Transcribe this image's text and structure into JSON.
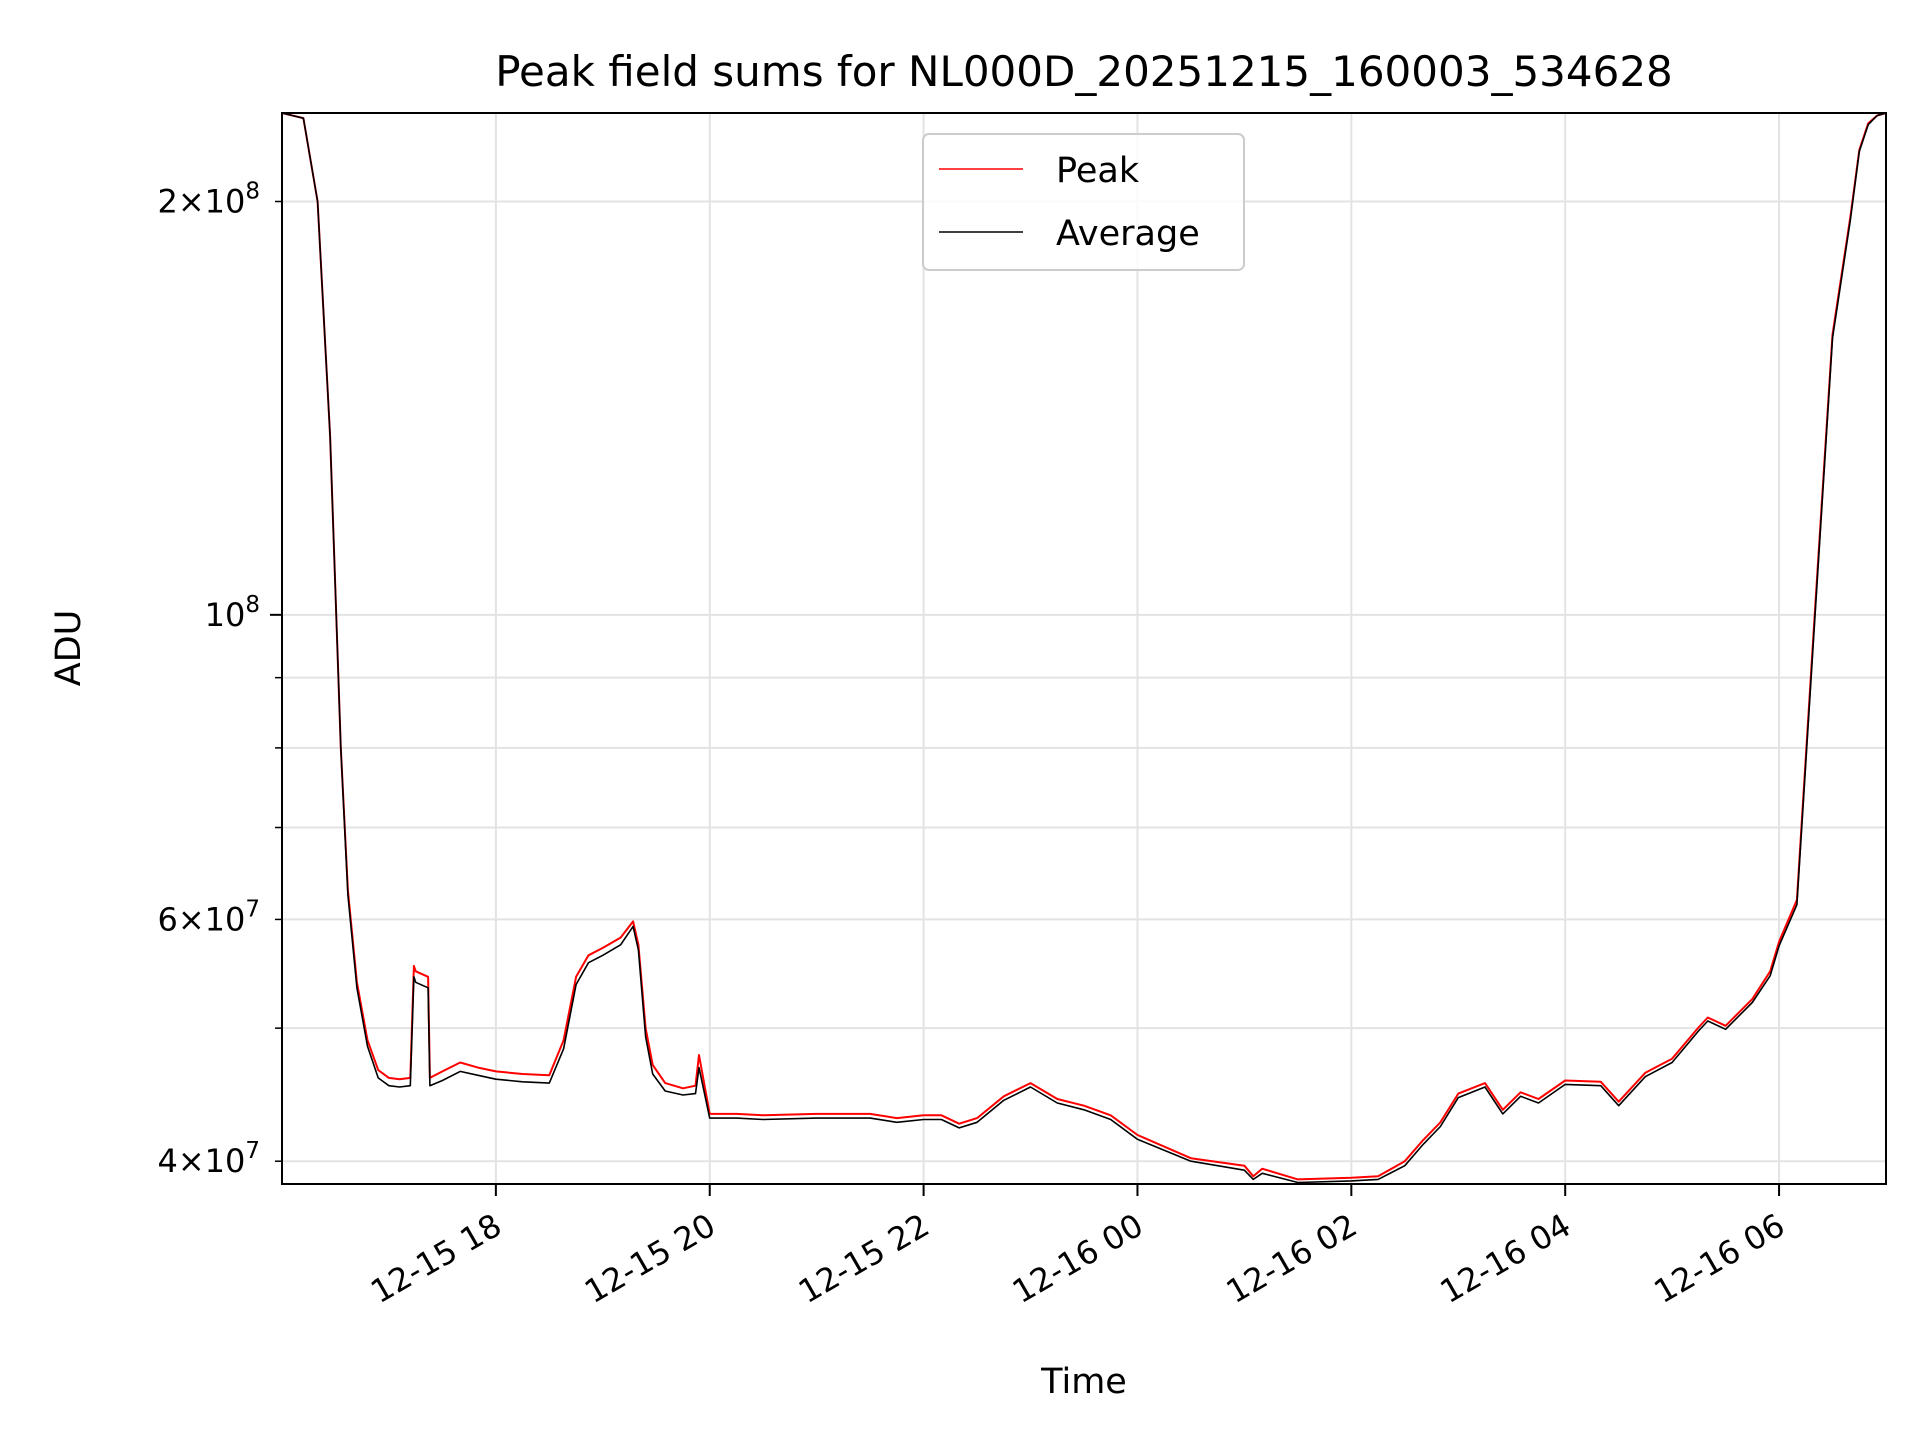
{
  "chart_data": {
    "type": "line",
    "title": "Peak field sums for NL000D_20251215_160003_534628",
    "xlabel": "Time",
    "ylabel": "ADU",
    "y_scale": "log",
    "grid": true,
    "legend_position": "upper center",
    "xlim": [
      "2025-12-15 16:00",
      "2025-12-16 07:00"
    ],
    "ylim": [
      38500000,
      232000000
    ],
    "x_ticks": [
      {
        "value": "2025-12-15 18:00",
        "label": "12-15 18"
      },
      {
        "value": "2025-12-15 20:00",
        "label": "12-15 20"
      },
      {
        "value": "2025-12-15 22:00",
        "label": "12-15 22"
      },
      {
        "value": "2025-12-16 00:00",
        "label": "12-16 00"
      },
      {
        "value": "2025-12-16 02:00",
        "label": "12-16 02"
      },
      {
        "value": "2025-12-16 04:00",
        "label": "12-16 04"
      },
      {
        "value": "2025-12-16 06:00",
        "label": "12-16 06"
      }
    ],
    "y_major_ticks": [
      {
        "value": 100000000,
        "base": "10",
        "exp": "8"
      }
    ],
    "y_minor_ticks": [
      {
        "value": 40000000,
        "mant": "4",
        "base": "10",
        "exp": "7"
      },
      {
        "value": 60000000,
        "mant": "6",
        "base": "10",
        "exp": "7"
      },
      {
        "value": 200000000,
        "mant": "2",
        "base": "10",
        "exp": "8"
      },
      {
        "value": 50000000
      },
      {
        "value": 70000000
      },
      {
        "value": 80000000
      },
      {
        "value": 90000000
      }
    ],
    "series": [
      {
        "name": "Peak",
        "color": "#ff0000",
        "x": [
          "2025-12-15 16:00",
          "2025-12-15 16:12",
          "2025-12-15 16:20",
          "2025-12-15 16:27",
          "2025-12-15 16:33",
          "2025-12-15 16:37",
          "2025-12-15 16:42",
          "2025-12-15 16:48",
          "2025-12-15 16:54",
          "2025-12-15 17:00",
          "2025-12-15 17:06",
          "2025-12-15 17:12",
          "2025-12-15 17:14",
          "2025-12-15 17:15",
          "2025-12-15 17:22",
          "2025-12-15 17:23",
          "2025-12-15 17:30",
          "2025-12-15 17:40",
          "2025-12-15 17:50",
          "2025-12-15 18:00",
          "2025-12-15 18:15",
          "2025-12-15 18:30",
          "2025-12-15 18:38",
          "2025-12-15 18:45",
          "2025-12-15 18:52",
          "2025-12-15 19:00",
          "2025-12-15 19:10",
          "2025-12-15 19:17",
          "2025-12-15 19:20",
          "2025-12-15 19:24",
          "2025-12-15 19:28",
          "2025-12-15 19:35",
          "2025-12-15 19:45",
          "2025-12-15 19:52",
          "2025-12-15 19:54",
          "2025-12-15 20:00",
          "2025-12-15 20:15",
          "2025-12-15 20:30",
          "2025-12-15 21:00",
          "2025-12-15 21:30",
          "2025-12-15 21:45",
          "2025-12-15 22:00",
          "2025-12-15 22:10",
          "2025-12-15 22:20",
          "2025-12-15 22:30",
          "2025-12-15 22:45",
          "2025-12-15 23:00",
          "2025-12-15 23:15",
          "2025-12-15 23:30",
          "2025-12-15 23:45",
          "2025-12-16 00:00",
          "2025-12-16 00:30",
          "2025-12-16 01:00",
          "2025-12-16 01:05",
          "2025-12-16 01:10",
          "2025-12-16 01:30",
          "2025-12-16 02:00",
          "2025-12-16 02:15",
          "2025-12-16 02:30",
          "2025-12-16 02:40",
          "2025-12-16 02:50",
          "2025-12-16 03:00",
          "2025-12-16 03:15",
          "2025-12-16 03:25",
          "2025-12-16 03:35",
          "2025-12-16 03:45",
          "2025-12-16 04:00",
          "2025-12-16 04:20",
          "2025-12-16 04:30",
          "2025-12-16 04:45",
          "2025-12-16 05:00",
          "2025-12-16 05:15",
          "2025-12-16 05:20",
          "2025-12-16 05:30",
          "2025-12-16 05:45",
          "2025-12-16 05:55",
          "2025-12-16 06:00",
          "2025-12-16 06:10",
          "2025-12-16 06:20",
          "2025-12-16 06:30",
          "2025-12-16 06:40",
          "2025-12-16 06:45",
          "2025-12-16 06:50",
          "2025-12-16 06:55",
          "2025-12-16 07:00"
        ],
        "y": [
          232000000,
          230000000,
          200000000,
          135000000,
          80000000,
          63000000,
          54000000,
          49000000,
          46600000,
          46000000,
          45900000,
          46000000,
          55500000,
          55000000,
          54500000,
          46000000,
          46500000,
          47200000,
          46800000,
          46500000,
          46300000,
          46200000,
          49000000,
          54500000,
          56500000,
          57200000,
          58200000,
          59800000,
          57500000,
          50000000,
          47000000,
          45600000,
          45200000,
          45400000,
          47800000,
          43300000,
          43300000,
          43200000,
          43300000,
          43300000,
          43000000,
          43200000,
          43200000,
          42600000,
          43000000,
          44600000,
          45600000,
          44400000,
          43900000,
          43200000,
          41800000,
          40200000,
          39700000,
          39000000,
          39500000,
          38800000,
          38900000,
          39000000,
          40000000,
          41400000,
          42700000,
          44800000,
          45600000,
          43600000,
          44900000,
          44400000,
          45800000,
          45700000,
          44200000,
          46400000,
          47500000,
          50100000,
          50900000,
          50200000,
          52500000,
          55000000,
          57800000,
          62000000,
          100000000,
          160000000,
          195000000,
          218000000,
          228000000,
          231000000,
          232000000
        ]
      },
      {
        "name": "Average",
        "color": "#000000",
        "x": [
          "2025-12-15 16:00",
          "2025-12-15 16:12",
          "2025-12-15 16:20",
          "2025-12-15 16:27",
          "2025-12-15 16:33",
          "2025-12-15 16:37",
          "2025-12-15 16:42",
          "2025-12-15 16:48",
          "2025-12-15 16:54",
          "2025-12-15 17:00",
          "2025-12-15 17:06",
          "2025-12-15 17:12",
          "2025-12-15 17:14",
          "2025-12-15 17:15",
          "2025-12-15 17:22",
          "2025-12-15 17:23",
          "2025-12-15 17:30",
          "2025-12-15 17:40",
          "2025-12-15 17:50",
          "2025-12-15 18:00",
          "2025-12-15 18:15",
          "2025-12-15 18:30",
          "2025-12-15 18:38",
          "2025-12-15 18:45",
          "2025-12-15 18:52",
          "2025-12-15 19:00",
          "2025-12-15 19:10",
          "2025-12-15 19:17",
          "2025-12-15 19:20",
          "2025-12-15 19:24",
          "2025-12-15 19:28",
          "2025-12-15 19:35",
          "2025-12-15 19:45",
          "2025-12-15 19:52",
          "2025-12-15 19:54",
          "2025-12-15 20:00",
          "2025-12-15 20:15",
          "2025-12-15 20:30",
          "2025-12-15 21:00",
          "2025-12-15 21:30",
          "2025-12-15 21:45",
          "2025-12-15 22:00",
          "2025-12-15 22:10",
          "2025-12-15 22:20",
          "2025-12-15 22:30",
          "2025-12-15 22:45",
          "2025-12-15 23:00",
          "2025-12-15 23:15",
          "2025-12-15 23:30",
          "2025-12-15 23:45",
          "2025-12-16 00:00",
          "2025-12-16 00:30",
          "2025-12-16 01:00",
          "2025-12-16 01:05",
          "2025-12-16 01:10",
          "2025-12-16 01:30",
          "2025-12-16 02:00",
          "2025-12-16 02:15",
          "2025-12-16 02:30",
          "2025-12-16 02:40",
          "2025-12-16 02:50",
          "2025-12-16 03:00",
          "2025-12-16 03:15",
          "2025-12-16 03:25",
          "2025-12-16 03:35",
          "2025-12-16 03:45",
          "2025-12-16 04:00",
          "2025-12-16 04:20",
          "2025-12-16 04:30",
          "2025-12-16 04:45",
          "2025-12-16 05:00",
          "2025-12-16 05:15",
          "2025-12-16 05:20",
          "2025-12-16 05:30",
          "2025-12-16 05:45",
          "2025-12-16 05:55",
          "2025-12-16 06:00",
          "2025-12-16 06:10",
          "2025-12-16 06:20",
          "2025-12-16 06:30",
          "2025-12-16 06:40",
          "2025-12-16 06:45",
          "2025-12-16 06:50",
          "2025-12-16 06:55",
          "2025-12-16 07:00"
        ],
        "y": [
          232000000,
          230000000,
          200000000,
          135000000,
          80000000,
          62500000,
          53500000,
          48500000,
          46000000,
          45400000,
          45300000,
          45400000,
          54500000,
          54000000,
          53500000,
          45400000,
          45800000,
          46500000,
          46200000,
          45900000,
          45700000,
          45600000,
          48300000,
          53800000,
          55800000,
          56500000,
          57500000,
          59300000,
          57000000,
          49300000,
          46300000,
          45000000,
          44700000,
          44800000,
          46800000,
          43000000,
          43000000,
          42900000,
          43000000,
          43000000,
          42700000,
          42900000,
          42900000,
          42300000,
          42700000,
          44300000,
          45300000,
          44100000,
          43600000,
          42900000,
          41500000,
          40000000,
          39400000,
          38800000,
          39200000,
          38600000,
          38700000,
          38800000,
          39700000,
          41100000,
          42400000,
          44500000,
          45300000,
          43300000,
          44600000,
          44100000,
          45500000,
          45400000,
          43900000,
          46100000,
          47200000,
          49800000,
          50600000,
          49900000,
          52200000,
          54600000,
          57400000,
          61500000,
          99000000,
          159000000,
          194000000,
          217500000,
          227500000,
          231000000,
          232000000
        ]
      }
    ]
  }
}
